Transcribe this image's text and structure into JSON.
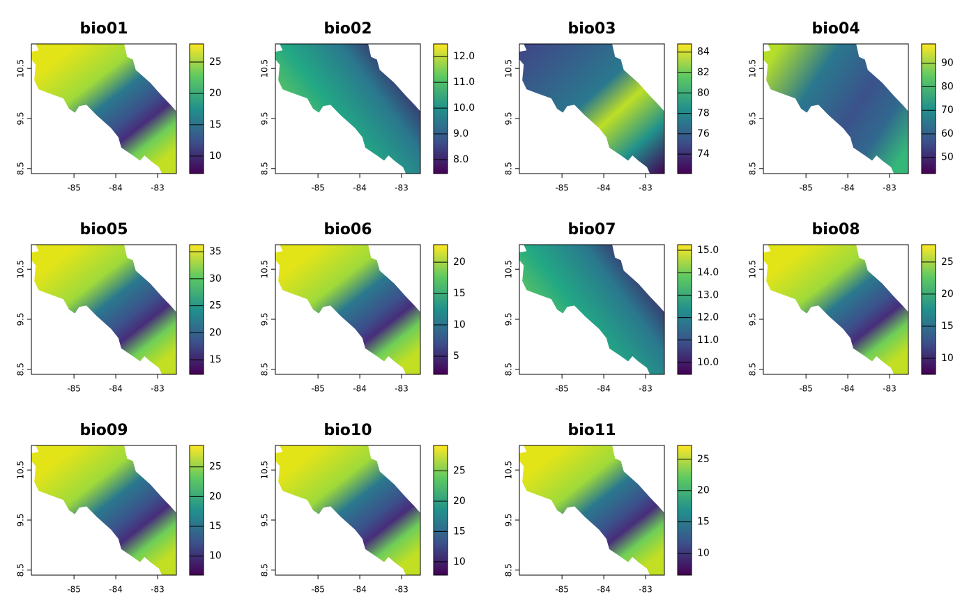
{
  "chart_data": [
    {
      "type": "raster",
      "title": "bio01",
      "xlim": [
        -86.02,
        -82.55
      ],
      "ylim": [
        8.4,
        10.99
      ],
      "xticks": [
        -85,
        -84,
        -83
      ],
      "yticks": [
        8.5,
        9.5,
        10.5
      ],
      "colormap": "viridis",
      "colorbar": {
        "lim": [
          7.2,
          27.9
        ],
        "ticks": [
          10,
          15,
          20,
          25
        ]
      }
    },
    {
      "type": "raster",
      "title": "bio02",
      "xlim": [
        -86.02,
        -82.55
      ],
      "ylim": [
        8.4,
        10.99
      ],
      "xticks": [
        -85,
        -84,
        -83
      ],
      "yticks": [
        8.5,
        9.5,
        10.5
      ],
      "colormap": "viridis",
      "colorbar": {
        "lim": [
          7.46,
          12.49
        ],
        "ticks": [
          {
            "value": 8,
            "label": "8.0"
          },
          {
            "value": 9,
            "label": "9.0"
          },
          {
            "value": 10,
            "label": "10.0"
          },
          {
            "value": 11,
            "label": "11.0"
          },
          {
            "value": 12,
            "label": "12.0"
          }
        ]
      }
    },
    {
      "type": "raster",
      "title": "bio03",
      "xlim": [
        -86.02,
        -82.55
      ],
      "ylim": [
        8.4,
        10.99
      ],
      "xticks": [
        -85,
        -84,
        -83
      ],
      "yticks": [
        8.5,
        9.5,
        10.5
      ],
      "colormap": "viridis",
      "colorbar": {
        "lim": [
          72.1,
          84.8
        ],
        "ticks": [
          74,
          76,
          78,
          80,
          82,
          84
        ]
      }
    },
    {
      "type": "raster",
      "title": "bio04",
      "xlim": [
        -86.02,
        -82.55
      ],
      "ylim": [
        8.4,
        10.99
      ],
      "xticks": [
        -85,
        -84,
        -83
      ],
      "yticks": [
        8.5,
        9.5,
        10.5
      ],
      "colormap": "viridis",
      "colorbar": {
        "lim": [
          43.1,
          98.2
        ],
        "ticks": [
          50,
          60,
          70,
          80,
          90
        ]
      }
    },
    {
      "type": "raster",
      "title": "bio05",
      "xlim": [
        -86.02,
        -82.55
      ],
      "ylim": [
        8.4,
        10.99
      ],
      "xticks": [
        -85,
        -84,
        -83
      ],
      "yticks": [
        8.5,
        9.5,
        10.5
      ],
      "colormap": "viridis",
      "colorbar": {
        "lim": [
          12.3,
          36.3
        ],
        "ticks": [
          15,
          20,
          25,
          30,
          35
        ]
      }
    },
    {
      "type": "raster",
      "title": "bio06",
      "xlim": [
        -86.02,
        -82.55
      ],
      "ylim": [
        8.4,
        10.99
      ],
      "xticks": [
        -85,
        -84,
        -83
      ],
      "yticks": [
        8.5,
        9.5,
        10.5
      ],
      "colormap": "viridis",
      "colorbar": {
        "lim": [
          2.1,
          22.8
        ],
        "ticks": [
          5,
          10,
          15,
          20
        ]
      }
    },
    {
      "type": "raster",
      "title": "bio07",
      "xlim": [
        -86.02,
        -82.55
      ],
      "ylim": [
        8.4,
        10.99
      ],
      "xticks": [
        -85,
        -84,
        -83
      ],
      "yticks": [
        8.5,
        9.5,
        10.5
      ],
      "colormap": "viridis",
      "colorbar": {
        "lim": [
          9.47,
          15.25
        ],
        "ticks": [
          {
            "value": 10,
            "label": "10.0"
          },
          {
            "value": 11,
            "label": "11.0"
          },
          {
            "value": 12,
            "label": "12.0"
          },
          {
            "value": 13,
            "label": "13.0"
          },
          {
            "value": 14,
            "label": "14.0"
          },
          {
            "value": 15,
            "label": "15.0"
          }
        ]
      }
    },
    {
      "type": "raster",
      "title": "bio08",
      "xlim": [
        -86.02,
        -82.55
      ],
      "ylim": [
        8.4,
        10.99
      ],
      "xticks": [
        -85,
        -84,
        -83
      ],
      "yticks": [
        8.5,
        9.5,
        10.5
      ],
      "colormap": "viridis",
      "colorbar": {
        "lim": [
          7.5,
          27.7
        ],
        "ticks": [
          10,
          15,
          20,
          25
        ]
      }
    },
    {
      "type": "raster",
      "title": "bio09",
      "xlim": [
        -86.02,
        -82.55
      ],
      "ylim": [
        8.4,
        10.99
      ],
      "xticks": [
        -85,
        -84,
        -83
      ],
      "yticks": [
        8.5,
        9.5,
        10.5
      ],
      "colormap": "viridis",
      "colorbar": {
        "lim": [
          6.8,
          28.6
        ],
        "ticks": [
          10,
          15,
          20,
          25
        ]
      }
    },
    {
      "type": "raster",
      "title": "bio10",
      "xlim": [
        -86.02,
        -82.55
      ],
      "ylim": [
        8.4,
        10.99
      ],
      "xticks": [
        -85,
        -84,
        -83
      ],
      "yticks": [
        8.5,
        9.5,
        10.5
      ],
      "colormap": "viridis",
      "colorbar": {
        "lim": [
          7.8,
          29.2
        ],
        "ticks": [
          10,
          15,
          20,
          25
        ]
      }
    },
    {
      "type": "raster",
      "title": "bio11",
      "xlim": [
        -86.02,
        -82.55
      ],
      "ylim": [
        8.4,
        10.99
      ],
      "xticks": [
        -85,
        -84,
        -83
      ],
      "yticks": [
        8.5,
        9.5,
        10.5
      ],
      "colormap": "viridis",
      "colorbar": {
        "lim": [
          6.5,
          27.2
        ],
        "ticks": [
          10,
          15,
          20,
          25
        ]
      }
    }
  ]
}
